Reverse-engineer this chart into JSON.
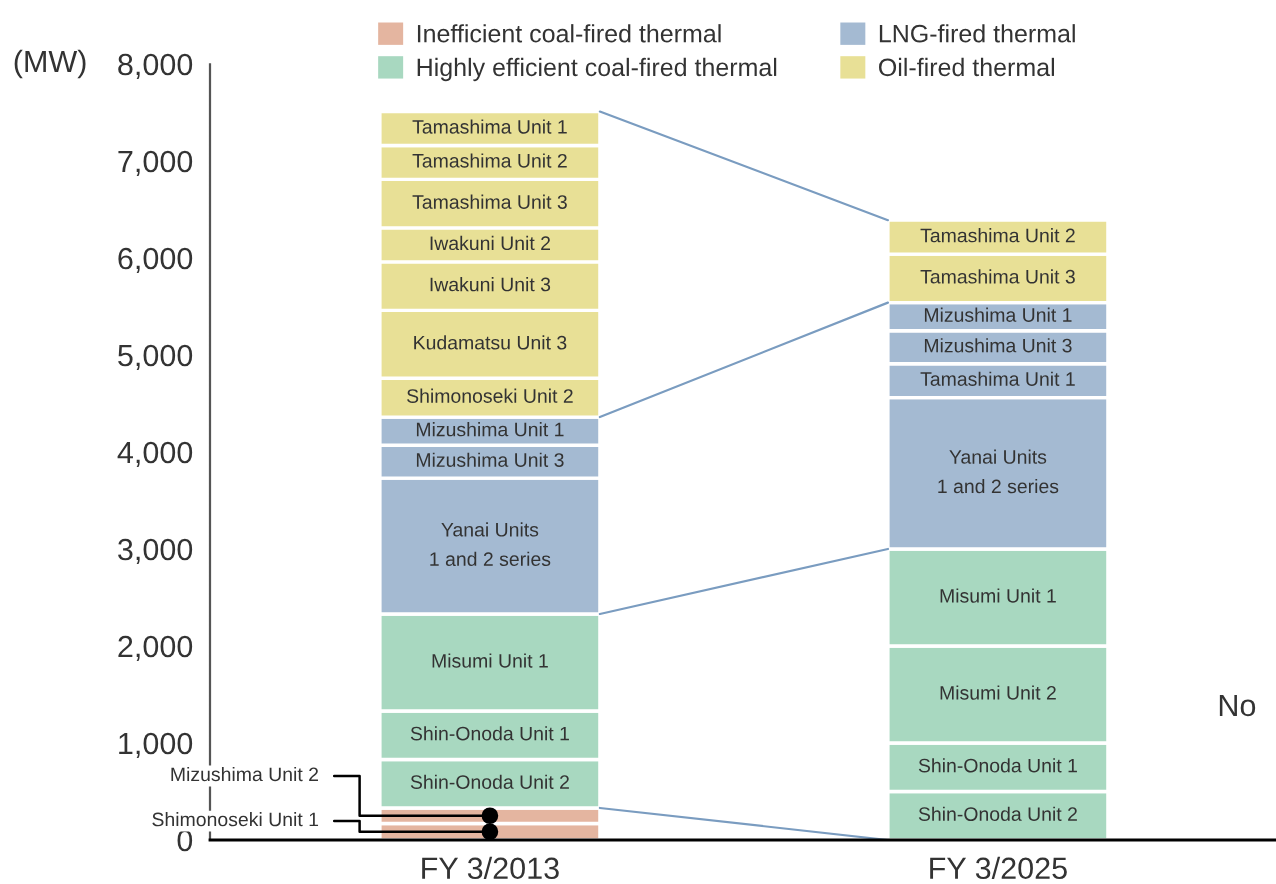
{
  "chart_data": {
    "type": "bar",
    "stacked": true,
    "ylabel": "(MW)",
    "categories": [
      "FY 3/2013",
      "FY 3/2025"
    ],
    "ylim": [
      0,
      8000
    ],
    "yticks": [
      0,
      {
        "value": 1000,
        "label": "1,000"
      },
      {
        "value": 2000,
        "label": "2,000"
      },
      {
        "value": 3000,
        "label": "3,000"
      },
      {
        "value": 4000,
        "label": "4,000"
      },
      {
        "value": 5000,
        "label": "5,000"
      },
      {
        "value": 6000,
        "label": "6,000"
      },
      {
        "value": 7000,
        "label": "7,000"
      },
      {
        "value": 8000,
        "label": "8,000"
      }
    ],
    "legend": "top",
    "grid": false,
    "annotations": [
      {
        "text": "No"
      }
    ],
    "series": [
      {
        "name": "Inefficient coal-fired thermal",
        "color": "#e4b5a0",
        "values": [
          null,
          null
        ]
      },
      {
        "name": "Highly efficient coal-fired thermal",
        "color": "#a8d8c0",
        "values": [
          null,
          null
        ]
      },
      {
        "name": "LNG-fired thermal",
        "color": "#a4bad2",
        "values": [
          null,
          null
        ]
      },
      {
        "name": "Oil-fired thermal",
        "color": "#e8e096",
        "values": [
          null,
          null
        ]
      },
      {
        "name": "Shimonoseki Unit 1",
        "color": "#e4b5a0",
        "values": [
          170,
          null
        ]
      },
      {
        "name": "Mizushima Unit 2",
        "color": "#e4b5a0",
        "values": [
          160,
          null
        ]
      },
      {
        "name": "Shin-Onoda Unit 2",
        "color": "#a8d8c0",
        "values": [
          500,
          500
        ]
      },
      {
        "name": "Shin-Onoda Unit 1",
        "color": "#a8d8c0",
        "values": [
          500,
          500
        ]
      },
      {
        "name": "Misumi Unit 2",
        "color": "#a8d8c0",
        "values": [
          null,
          1000
        ]
      },
      {
        "name": "Misumi Unit 1",
        "color": "#a8d8c0",
        "values": [
          1000,
          1000
        ]
      },
      {
        "name": "Yanai Units\n1 and 2 series",
        "color": "#a4bad2",
        "values": [
          1400,
          1560
        ]
      },
      {
        "name": "Tamashima Unit 1",
        "color": "#a4bad2",
        "values": [
          null,
          350
        ]
      },
      {
        "name": "Mizushima Unit 3",
        "color": "#a4bad2",
        "values": [
          340,
          340
        ]
      },
      {
        "name": "Mizushima Unit 1",
        "color": "#a4bad2",
        "values": [
          290,
          290
        ]
      },
      {
        "name": "Shimonoseki Unit 2",
        "color": "#e8e096",
        "values": [
          400,
          null
        ]
      },
      {
        "name": "Kudamatsu Unit 3",
        "color": "#e8e096",
        "values": [
          700,
          null
        ]
      },
      {
        "name": "Iwakuni Unit 3",
        "color": "#e8e096",
        "values": [
          500,
          null
        ]
      },
      {
        "name": "Iwakuni Unit 2",
        "color": "#e8e096",
        "values": [
          350,
          null
        ]
      },
      {
        "name": "Tamashima Unit 3",
        "color": "#e8e096",
        "values": [
          500,
          500
        ]
      },
      {
        "name": "Tamashima Unit 2",
        "color": "#e8e096",
        "values": [
          350,
          350
        ]
      },
      {
        "name": "Tamashima Unit 1",
        "color": "#e8e096",
        "values": [
          350,
          null
        ]
      }
    ]
  }
}
